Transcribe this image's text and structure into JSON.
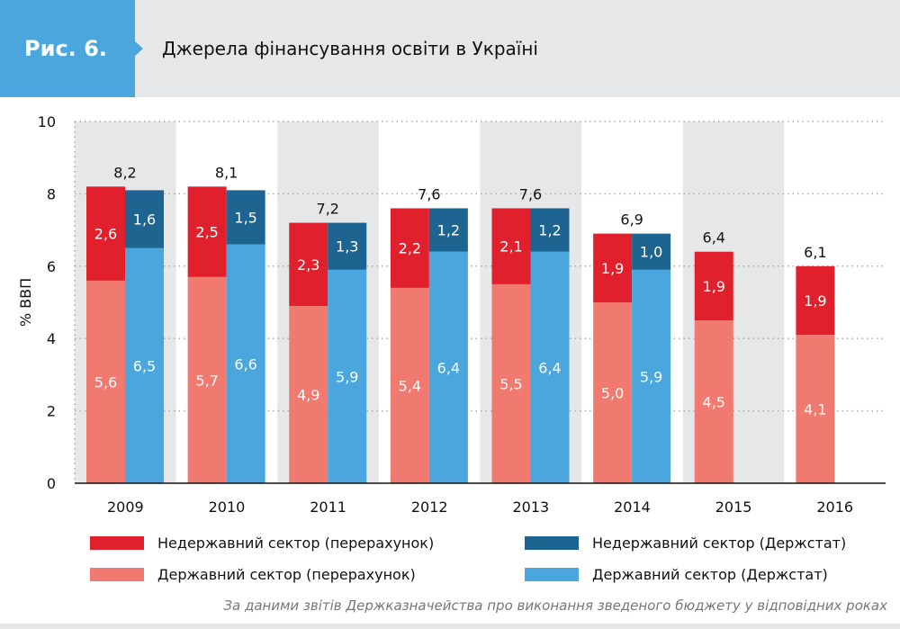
{
  "header": {
    "figure_label": "Рис. 6.",
    "title": "Джерела фінансування освіти в Україні"
  },
  "source": "За даними звітів Держказначейства про виконання зведеного бюджету у відповідних роках",
  "chart_data": {
    "type": "bar",
    "title": "Джерела фінансування освіти в Україні",
    "ylabel": "% ВВП",
    "xlabel": "",
    "ylim": [
      0,
      10
    ],
    "yticks": [
      0,
      2,
      4,
      6,
      8,
      10
    ],
    "grid": true,
    "categories": [
      "2009",
      "2010",
      "2011",
      "2012",
      "2013",
      "2014",
      "2015",
      "2016"
    ],
    "totals": [
      "8,2",
      "8,1",
      "7,2",
      "7,6",
      "7,6",
      "6,9",
      "6,4",
      "6,1"
    ],
    "series": [
      {
        "name": "Державний сектор (перерахунок)",
        "stack": "recalc",
        "color": "#f07a70",
        "values": [
          5.6,
          5.7,
          4.9,
          5.4,
          5.5,
          5.0,
          4.5,
          4.1
        ],
        "labels": [
          "5,6",
          "5,7",
          "4,9",
          "5,4",
          "5,5",
          "5,0",
          "4,5",
          "4,1"
        ]
      },
      {
        "name": "Недержавний сектор (перерахунок)",
        "stack": "recalc",
        "color": "#e0202d",
        "values": [
          2.6,
          2.5,
          2.3,
          2.2,
          2.1,
          1.9,
          1.9,
          1.9
        ],
        "labels": [
          "2,6",
          "2,5",
          "2,3",
          "2,2",
          "2,1",
          "1,9",
          "1,9",
          "1,9"
        ]
      },
      {
        "name": "Державний сектор (Держстат)",
        "stack": "stat",
        "color": "#4aa6dc",
        "values": [
          6.5,
          6.6,
          5.9,
          6.4,
          6.4,
          5.9,
          null,
          null
        ],
        "labels": [
          "6,5",
          "6,6",
          "5,9",
          "6,4",
          "6,4",
          "5,9",
          "",
          ""
        ]
      },
      {
        "name": "Недержавний сектор (Держстат)",
        "stack": "stat",
        "color": "#1d6590",
        "values": [
          1.6,
          1.5,
          1.3,
          1.2,
          1.2,
          1.0,
          null,
          null
        ],
        "labels": [
          "1,6",
          "1,5",
          "1,3",
          "1,2",
          "1,2",
          "1,0",
          "",
          ""
        ]
      }
    ],
    "legend": [
      "Недержавний сектор (перерахунок)",
      "Недержавний сектор (Держстат)",
      "Державний сектор (перерахунок)",
      "Державний сектор (Держстат)"
    ],
    "legend_position": "bottom"
  }
}
